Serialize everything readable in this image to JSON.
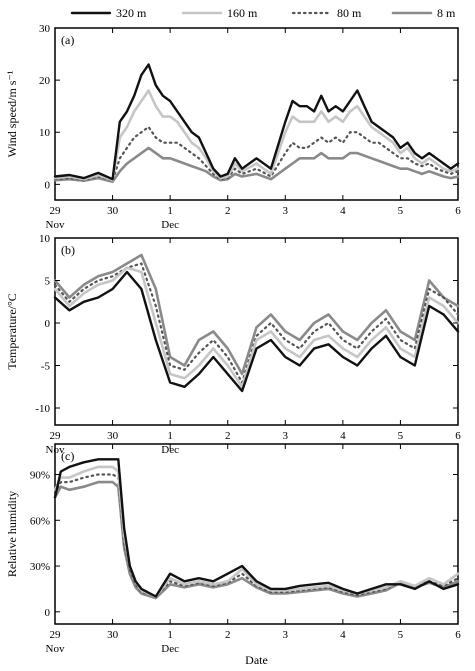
{
  "legend": {
    "entries": [
      {
        "label": "320 m",
        "color": "#111111",
        "style": "solid"
      },
      {
        "label": "160 m",
        "color": "#c6c6c6",
        "style": "solid"
      },
      {
        "label": "80 m",
        "color": "#555555",
        "style": "dotted"
      },
      {
        "label": "8 m",
        "color": "#8a8a8a",
        "style": "solid"
      }
    ]
  },
  "chart_data": [
    {
      "type": "line",
      "panel_label": "(a)",
      "ylabel": "Wind speed/m s⁻¹",
      "xlabel": "",
      "xlim": [
        0,
        7
      ],
      "ylim": [
        -3,
        30
      ],
      "yticks": [
        0,
        10,
        20,
        30
      ],
      "xtick_labels": [
        {
          "x": 0,
          "day": "29",
          "month": "Nov"
        },
        {
          "x": 1,
          "day": "30",
          "month": ""
        },
        {
          "x": 2,
          "day": "1",
          "month": "Dec"
        },
        {
          "x": 3,
          "day": "2",
          "month": ""
        },
        {
          "x": 4,
          "day": "3",
          "month": ""
        },
        {
          "x": 5,
          "day": "4",
          "month": ""
        },
        {
          "x": 6,
          "day": "5",
          "month": ""
        },
        {
          "x": 7,
          "day": "6",
          "month": ""
        }
      ],
      "x": [
        0,
        0.25,
        0.5,
        0.75,
        1.0,
        1.125,
        1.25,
        1.375,
        1.5,
        1.625,
        1.75,
        1.875,
        2.0,
        2.125,
        2.25,
        2.375,
        2.5,
        2.625,
        2.75,
        2.875,
        3.0,
        3.125,
        3.25,
        3.5,
        3.75,
        4.0,
        4.125,
        4.25,
        4.375,
        4.5,
        4.625,
        4.75,
        4.875,
        5.0,
        5.125,
        5.25,
        5.375,
        5.5,
        5.625,
        5.75,
        5.875,
        6.0,
        6.125,
        6.25,
        6.375,
        6.5,
        6.625,
        6.75,
        6.875,
        7.0
      ],
      "series": [
        {
          "name": "320 m",
          "values": [
            1.5,
            1.8,
            1.2,
            2.2,
            1.0,
            12,
            14,
            17,
            21,
            23,
            19,
            17,
            16,
            14,
            12,
            10,
            9,
            6,
            3,
            1.5,
            2,
            5,
            3,
            5,
            3,
            12,
            16,
            15,
            15,
            14,
            17,
            14,
            15,
            14,
            16,
            18,
            15,
            12,
            11,
            10,
            9,
            7,
            8,
            6,
            5,
            6,
            5,
            4,
            3,
            4
          ]
        },
        {
          "name": "160 m",
          "values": [
            1.2,
            1.5,
            1.0,
            1.8,
            0.8,
            9,
            11,
            14,
            16,
            18,
            15,
            13,
            13,
            12,
            10,
            8,
            7,
            5,
            2.5,
            1.2,
            1.5,
            4,
            2.5,
            4,
            2,
            10,
            13,
            12,
            12,
            12,
            14,
            12,
            13,
            12,
            14,
            15,
            13,
            11,
            10,
            9,
            8,
            6,
            7,
            5,
            4,
            5,
            4,
            3,
            2.5,
            3
          ]
        },
        {
          "name": "80 m",
          "values": [
            1.0,
            1.2,
            0.8,
            1.5,
            0.7,
            5,
            7,
            9,
            10,
            11,
            9,
            8,
            8,
            8,
            7,
            6,
            5,
            3.5,
            2,
            1,
            1.2,
            3,
            2,
            3,
            1.5,
            6,
            8,
            7,
            7,
            8,
            9,
            8,
            9,
            8,
            10,
            10,
            9,
            8,
            8,
            7,
            6,
            5,
            5,
            4,
            3.5,
            4,
            3,
            2.5,
            2,
            2.5
          ]
        },
        {
          "name": "8 m",
          "values": [
            0.8,
            1.0,
            0.7,
            1.2,
            0.5,
            2.5,
            4,
            5,
            6,
            7,
            6,
            5,
            5,
            4.5,
            4,
            3.5,
            3,
            2.5,
            1.5,
            0.8,
            1,
            2,
            1.5,
            2,
            1,
            3,
            4,
            5,
            5,
            5,
            6,
            5,
            5,
            5,
            6,
            6,
            5.5,
            5,
            4.5,
            4,
            3.5,
            3,
            3,
            2.5,
            2,
            2.5,
            2,
            1.5,
            1.2,
            1.5
          ]
        }
      ]
    },
    {
      "type": "line",
      "panel_label": "(b)",
      "ylabel": "Temperature/°C",
      "xlabel": "",
      "xlim": [
        0,
        7
      ],
      "ylim": [
        -12,
        10
      ],
      "yticks": [
        -10,
        -5,
        0,
        5,
        10
      ],
      "xtick_labels": [
        {
          "x": 0,
          "day": "29",
          "month": "Nov"
        },
        {
          "x": 1,
          "day": "30",
          "month": ""
        },
        {
          "x": 2,
          "day": "1",
          "month": "Dec"
        },
        {
          "x": 3,
          "day": "2",
          "month": ""
        },
        {
          "x": 4,
          "day": "3",
          "month": ""
        },
        {
          "x": 5,
          "day": "4",
          "month": ""
        },
        {
          "x": 6,
          "day": "5",
          "month": ""
        },
        {
          "x": 7,
          "day": "6",
          "month": ""
        }
      ],
      "x": [
        0,
        0.25,
        0.5,
        0.75,
        1.0,
        1.25,
        1.5,
        1.75,
        2.0,
        2.25,
        2.5,
        2.75,
        3.0,
        3.25,
        3.5,
        3.75,
        4.0,
        4.25,
        4.5,
        4.75,
        5.0,
        5.25,
        5.5,
        5.75,
        6.0,
        6.25,
        6.5,
        6.75,
        7.0
      ],
      "series": [
        {
          "name": "320 m",
          "values": [
            3,
            1.5,
            2.5,
            3,
            4,
            6,
            4,
            -2,
            -7,
            -7.5,
            -6,
            -4,
            -6,
            -8,
            -3,
            -2,
            -4,
            -5,
            -3,
            -2.5,
            -4,
            -5,
            -3,
            -1.5,
            -4,
            -5,
            2,
            1,
            -1
          ]
        },
        {
          "name": "160 m",
          "values": [
            4,
            2,
            3.5,
            4.5,
            5,
            6.5,
            6,
            0,
            -6,
            -6.5,
            -5,
            -3,
            -5,
            -7.5,
            -2,
            -1,
            -3,
            -4,
            -2,
            -1.5,
            -3,
            -4,
            -2,
            -0.5,
            -3,
            -4,
            3,
            2,
            0
          ]
        },
        {
          "name": "80 m",
          "values": [
            4.5,
            2.5,
            4,
            5,
            5.5,
            6.5,
            7,
            2,
            -5,
            -5.5,
            -3.5,
            -2,
            -4,
            -7,
            -1.5,
            0,
            -2,
            -3,
            -1,
            0,
            -2,
            -3,
            -1,
            0.5,
            -2,
            -3,
            4,
            3,
            1
          ]
        },
        {
          "name": "8 m",
          "values": [
            5,
            3,
            4.5,
            5.5,
            6,
            7,
            8,
            4,
            -4,
            -5,
            -2,
            -1,
            -3,
            -6,
            -0.5,
            1,
            -1,
            -2,
            0,
            1,
            -1,
            -2,
            0,
            1.5,
            -1,
            -2,
            5,
            3,
            2
          ]
        }
      ]
    },
    {
      "type": "line",
      "panel_label": "(c)",
      "ylabel": "Relative humidity",
      "xlabel": "Date",
      "xlim": [
        0,
        7
      ],
      "ylim": [
        -8,
        110
      ],
      "yticks": [
        0,
        30,
        60,
        90
      ],
      "ytick_labels": [
        "0",
        "30%",
        "60%",
        "90%"
      ],
      "xtick_labels": [
        {
          "x": 0,
          "day": "29",
          "month": "Nov"
        },
        {
          "x": 1,
          "day": "30",
          "month": ""
        },
        {
          "x": 2,
          "day": "1",
          "month": "Dec"
        },
        {
          "x": 3,
          "day": "2",
          "month": ""
        },
        {
          "x": 4,
          "day": "3",
          "month": ""
        },
        {
          "x": 5,
          "day": "4",
          "month": ""
        },
        {
          "x": 6,
          "day": "5",
          "month": ""
        },
        {
          "x": 7,
          "day": "6",
          "month": ""
        }
      ],
      "x": [
        0,
        0.1,
        0.25,
        0.5,
        0.75,
        1.0,
        1.1,
        1.2,
        1.3,
        1.4,
        1.5,
        1.75,
        2.0,
        2.25,
        2.5,
        2.75,
        3.0,
        3.25,
        3.5,
        3.75,
        4.0,
        4.25,
        4.5,
        4.75,
        5.0,
        5.25,
        5.5,
        5.75,
        6.0,
        6.25,
        6.5,
        6.75,
        7.0
      ],
      "series": [
        {
          "name": "320 m",
          "values": [
            75,
            92,
            95,
            98,
            100,
            100,
            100,
            55,
            30,
            20,
            15,
            10,
            25,
            20,
            22,
            20,
            25,
            30,
            20,
            15,
            15,
            17,
            18,
            19,
            15,
            12,
            15,
            18,
            18,
            15,
            20,
            15,
            18
          ]
        },
        {
          "name": "160 m",
          "values": [
            80,
            88,
            88,
            92,
            95,
            95,
            92,
            50,
            30,
            20,
            14,
            10,
            22,
            18,
            20,
            18,
            20,
            28,
            18,
            14,
            14,
            15,
            16,
            17,
            14,
            12,
            14,
            16,
            20,
            17,
            22,
            18,
            25
          ]
        },
        {
          "name": "80 m",
          "values": [
            78,
            85,
            85,
            88,
            90,
            90,
            88,
            45,
            28,
            18,
            13,
            10,
            20,
            17,
            19,
            17,
            19,
            25,
            17,
            13,
            13,
            14,
            15,
            16,
            13,
            11,
            13,
            15,
            20,
            17,
            20,
            17,
            22
          ]
        },
        {
          "name": "8 m",
          "values": [
            75,
            82,
            80,
            82,
            85,
            85,
            82,
            42,
            25,
            16,
            12,
            9,
            18,
            16,
            18,
            16,
            18,
            22,
            16,
            12,
            12,
            13,
            14,
            15,
            12,
            10,
            12,
            14,
            19,
            16,
            19,
            16,
            20
          ]
        }
      ]
    }
  ]
}
